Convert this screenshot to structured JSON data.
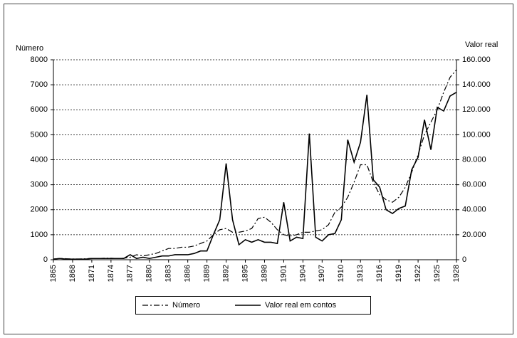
{
  "chart_data": {
    "type": "line",
    "y_label": "Número",
    "y2_label": "Valor real",
    "x": [
      1865,
      1866,
      1867,
      1868,
      1869,
      1870,
      1871,
      1872,
      1873,
      1874,
      1875,
      1876,
      1877,
      1878,
      1879,
      1880,
      1881,
      1882,
      1883,
      1884,
      1885,
      1886,
      1887,
      1888,
      1889,
      1890,
      1891,
      1892,
      1893,
      1894,
      1895,
      1896,
      1897,
      1898,
      1899,
      1900,
      1901,
      1902,
      1903,
      1904,
      1905,
      1906,
      1907,
      1908,
      1909,
      1910,
      1911,
      1912,
      1913,
      1914,
      1915,
      1916,
      1917,
      1918,
      1919,
      1920,
      1921,
      1922,
      1923,
      1924,
      1925,
      1926,
      1927,
      1928
    ],
    "xlim": [
      1865,
      1928
    ],
    "xticks": [
      1865,
      1868,
      1871,
      1874,
      1877,
      1880,
      1883,
      1886,
      1889,
      1892,
      1895,
      1898,
      1901,
      1904,
      1907,
      1910,
      1913,
      1916,
      1919,
      1922,
      1925,
      1928
    ],
    "ylim": [
      0,
      8000
    ],
    "yticks": [
      0,
      1000,
      2000,
      3000,
      4000,
      5000,
      6000,
      7000,
      8000
    ],
    "y2lim": [
      0,
      160000
    ],
    "y2ticks": [
      0,
      {
        "value": 20000,
        "label": "20.000"
      },
      {
        "value": 40000,
        "label": "40.000"
      },
      {
        "value": 60000,
        "label": "60.000"
      },
      {
        "value": 80000,
        "label": "80.000"
      },
      {
        "value": 100000,
        "label": "100.000"
      },
      {
        "value": 120000,
        "label": "120.000"
      },
      {
        "value": 140000,
        "label": "140.000"
      },
      {
        "value": 160000,
        "label": "160.000"
      }
    ],
    "grid": true,
    "series": [
      {
        "name": "Número",
        "color": "#000000",
        "line_style": "dashdot",
        "values": [
          30,
          50,
          40,
          30,
          30,
          40,
          50,
          50,
          60,
          60,
          50,
          60,
          100,
          200,
          150,
          200,
          250,
          350,
          450,
          450,
          500,
          500,
          550,
          650,
          750,
          1000,
          1200,
          1250,
          1100,
          1100,
          1150,
          1250,
          1650,
          1700,
          1500,
          1200,
          1000,
          950,
          1000,
          1100,
          1100,
          1150,
          1200,
          1400,
          1900,
          2100,
          2500,
          3100,
          3800,
          3800,
          3100,
          2600,
          2400,
          2300,
          2500,
          2900,
          3500,
          4200,
          5000,
          5500,
          6000,
          6700,
          7300,
          7600
        ]
      },
      {
        "name": "Valor real em contos",
        "color": "#000000",
        "line_style": "solid",
        "axis": "y2",
        "values": [
          500,
          1000,
          500,
          500,
          500,
          500,
          1000,
          1000,
          1000,
          1000,
          1000,
          1000,
          4000,
          1000,
          2000,
          1000,
          2000,
          3000,
          3000,
          4000,
          4000,
          4000,
          5000,
          7000,
          7000,
          20000,
          32000,
          77000,
          32000,
          12000,
          16000,
          14000,
          16000,
          14000,
          14000,
          13000,
          46000,
          15000,
          18000,
          17000,
          101000,
          18000,
          15000,
          20000,
          21000,
          32000,
          96000,
          78000,
          94000,
          132000,
          64000,
          58000,
          40000,
          37000,
          41000,
          43000,
          72000,
          82000,
          112000,
          88000,
          122000,
          119000,
          131000,
          134000
        ]
      }
    ]
  }
}
